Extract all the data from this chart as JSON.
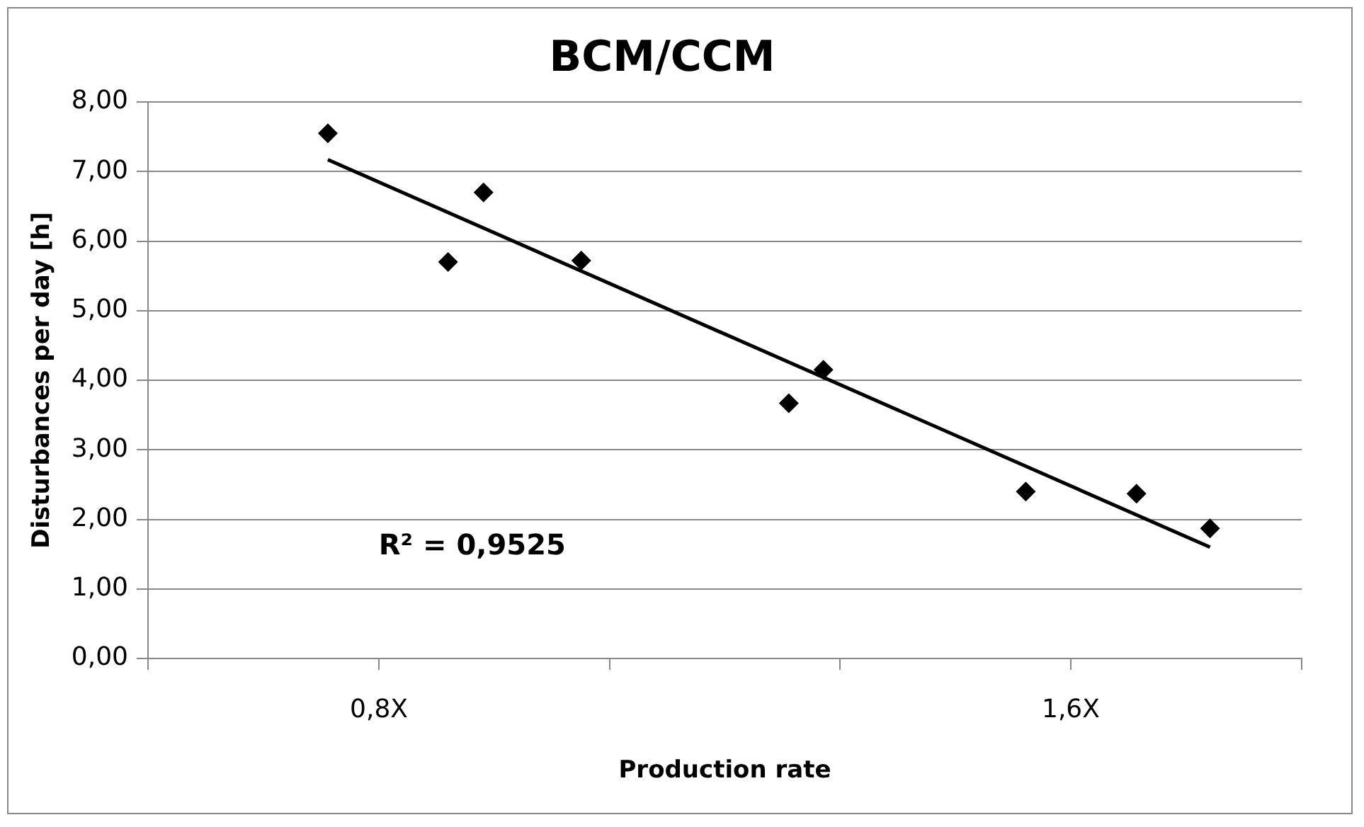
{
  "chart_data": {
    "type": "scatter",
    "title": "BCM/CCM",
    "xlabel": "Production rate",
    "ylabel": "Disturbances per day [h]",
    "series": [
      {
        "type": "scatter",
        "color": "#000000",
        "marker": "diamond",
        "x": [
          0.741,
          0.88,
          0.921,
          1.034,
          1.274,
          1.314,
          1.548,
          1.676,
          1.761
        ],
        "values": [
          7.55,
          5.7,
          6.7,
          5.72,
          3.67,
          4.15,
          2.4,
          2.37,
          1.87
        ]
      },
      {
        "type": "line",
        "color": "#000000",
        "marker": "none",
        "x": [
          0.741,
          1.761
        ],
        "values": [
          7.17,
          1.6
        ]
      }
    ],
    "xlim": [
      0.533,
      1.867
    ],
    "xticks": [
      {
        "value": 0.533,
        "label": null
      },
      {
        "value": 0.8,
        "label": "0,8X"
      },
      {
        "value": 1.067,
        "label": null
      },
      {
        "value": 1.333,
        "label": null
      },
      {
        "value": 1.6,
        "label": "1,6X"
      },
      {
        "value": 1.867,
        "label": null
      }
    ],
    "ylim": [
      0,
      8
    ],
    "yticks": [
      {
        "value": 0,
        "label": "0,00"
      },
      {
        "value": 1,
        "label": "1,00"
      },
      {
        "value": 2,
        "label": "2,00"
      },
      {
        "value": 3,
        "label": "3,00"
      },
      {
        "value": 4,
        "label": "4,00"
      },
      {
        "value": 5,
        "label": "5,00"
      },
      {
        "value": 6,
        "label": "6,00"
      },
      {
        "value": 7,
        "label": "7,00"
      },
      {
        "value": 8,
        "label": "8,00"
      }
    ],
    "grid": "y",
    "legend": false,
    "annotations": [
      "R² = 0,9525"
    ]
  }
}
